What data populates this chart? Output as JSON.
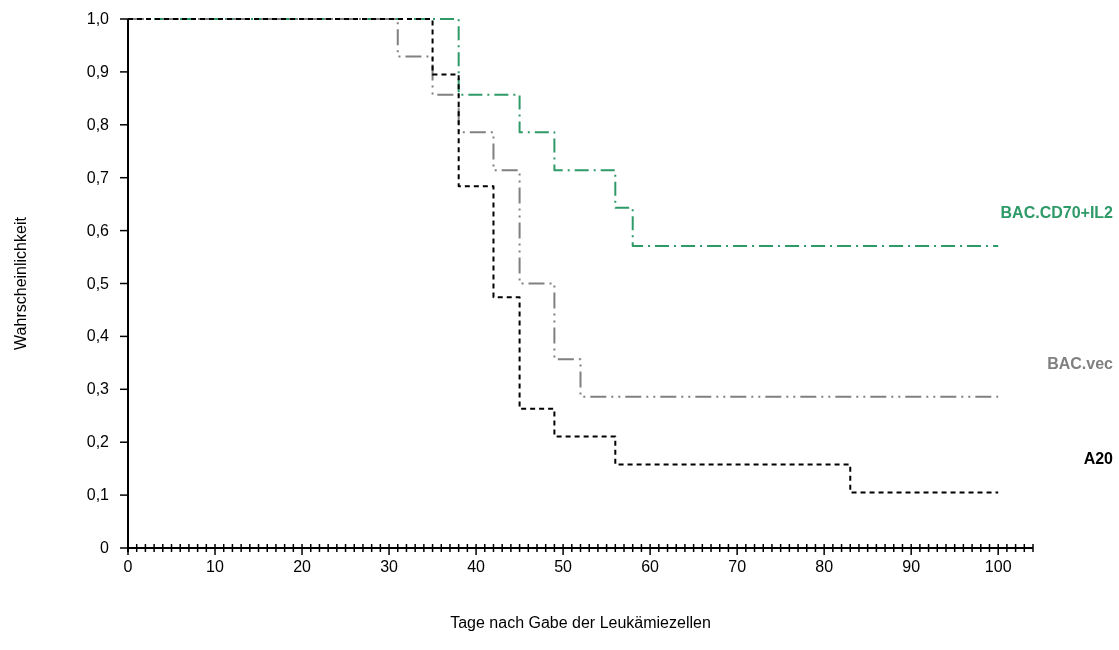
{
  "chart_data": {
    "type": "step",
    "xlabel": "Tage nach Gabe der Leukämiezellen",
    "ylabel": "Wahrscheinlichkeit",
    "xlim": [
      0,
      104
    ],
    "ylim": [
      0,
      1
    ],
    "xticks": [
      0,
      {
        "value": 1,
        "label": null
      },
      {
        "value": 2,
        "label": null
      },
      {
        "value": 3,
        "label": null
      },
      {
        "value": 4,
        "label": null
      },
      {
        "value": 5,
        "label": null
      },
      {
        "value": 6,
        "label": null
      },
      {
        "value": 7,
        "label": null
      },
      {
        "value": 8,
        "label": null
      },
      {
        "value": 9,
        "label": null
      },
      10,
      {
        "value": 11,
        "label": null
      },
      {
        "value": 12,
        "label": null
      },
      {
        "value": 13,
        "label": null
      },
      {
        "value": 14,
        "label": null
      },
      {
        "value": 15,
        "label": null
      },
      {
        "value": 16,
        "label": null
      },
      {
        "value": 17,
        "label": null
      },
      {
        "value": 18,
        "label": null
      },
      {
        "value": 19,
        "label": null
      },
      20,
      {
        "value": 21,
        "label": null
      },
      {
        "value": 22,
        "label": null
      },
      {
        "value": 23,
        "label": null
      },
      {
        "value": 24,
        "label": null
      },
      {
        "value": 25,
        "label": null
      },
      {
        "value": 26,
        "label": null
      },
      {
        "value": 27,
        "label": null
      },
      {
        "value": 28,
        "label": null
      },
      {
        "value": 29,
        "label": null
      },
      30,
      {
        "value": 31,
        "label": null
      },
      {
        "value": 32,
        "label": null
      },
      {
        "value": 33,
        "label": null
      },
      {
        "value": 34,
        "label": null
      },
      {
        "value": 35,
        "label": null
      },
      {
        "value": 36,
        "label": null
      },
      {
        "value": 37,
        "label": null
      },
      {
        "value": 38,
        "label": null
      },
      {
        "value": 39,
        "label": null
      },
      40,
      {
        "value": 41,
        "label": null
      },
      {
        "value": 42,
        "label": null
      },
      {
        "value": 43,
        "label": null
      },
      {
        "value": 44,
        "label": null
      },
      {
        "value": 45,
        "label": null
      },
      {
        "value": 46,
        "label": null
      },
      {
        "value": 47,
        "label": null
      },
      {
        "value": 48,
        "label": null
      },
      {
        "value": 49,
        "label": null
      },
      50,
      {
        "value": 51,
        "label": null
      },
      {
        "value": 52,
        "label": null
      },
      {
        "value": 53,
        "label": null
      },
      {
        "value": 54,
        "label": null
      },
      {
        "value": 55,
        "label": null
      },
      {
        "value": 56,
        "label": null
      },
      {
        "value": 57,
        "label": null
      },
      {
        "value": 58,
        "label": null
      },
      {
        "value": 59,
        "label": null
      },
      60,
      {
        "value": 61,
        "label": null
      },
      {
        "value": 62,
        "label": null
      },
      {
        "value": 63,
        "label": null
      },
      {
        "value": 64,
        "label": null
      },
      {
        "value": 65,
        "label": null
      },
      {
        "value": 66,
        "label": null
      },
      {
        "value": 67,
        "label": null
      },
      {
        "value": 68,
        "label": null
      },
      {
        "value": 69,
        "label": null
      },
      70,
      {
        "value": 71,
        "label": null
      },
      {
        "value": 72,
        "label": null
      },
      {
        "value": 73,
        "label": null
      },
      {
        "value": 74,
        "label": null
      },
      {
        "value": 75,
        "label": null
      },
      {
        "value": 76,
        "label": null
      },
      {
        "value": 77,
        "label": null
      },
      {
        "value": 78,
        "label": null
      },
      {
        "value": 79,
        "label": null
      },
      80,
      {
        "value": 81,
        "label": null
      },
      {
        "value": 82,
        "label": null
      },
      {
        "value": 83,
        "label": null
      },
      {
        "value": 84,
        "label": null
      },
      {
        "value": 85,
        "label": null
      },
      {
        "value": 86,
        "label": null
      },
      {
        "value": 87,
        "label": null
      },
      {
        "value": 88,
        "label": null
      },
      {
        "value": 89,
        "label": null
      },
      90,
      {
        "value": 91,
        "label": null
      },
      {
        "value": 92,
        "label": null
      },
      {
        "value": 93,
        "label": null
      },
      {
        "value": 94,
        "label": null
      },
      {
        "value": 95,
        "label": null
      },
      {
        "value": 96,
        "label": null
      },
      {
        "value": 97,
        "label": null
      },
      {
        "value": 98,
        "label": null
      },
      {
        "value": 99,
        "label": null
      },
      100,
      {
        "value": 101,
        "label": null
      },
      {
        "value": 102,
        "label": null
      },
      {
        "value": 103,
        "label": null
      },
      {
        "value": 104,
        "label": null
      }
    ],
    "yticks": [
      0,
      {
        "value": 0.1,
        "label": "0,1"
      },
      {
        "value": 0.2,
        "label": "0,2"
      },
      {
        "value": 0.3,
        "label": "0,3"
      },
      {
        "value": 0.4,
        "label": "0,4"
      },
      {
        "value": 0.5,
        "label": "0,5"
      },
      {
        "value": 0.6,
        "label": "0,6"
      },
      {
        "value": 0.7,
        "label": "0,7"
      },
      {
        "value": 0.8,
        "label": "0,8"
      },
      {
        "value": 0.9,
        "label": "0,9"
      },
      {
        "value": 1,
        "label": "1,0"
      }
    ],
    "grid": false,
    "line_style": "dashed",
    "series": [
      {
        "name": "BAC.CD70+IL2",
        "color": "#2e9a68",
        "x": [
          0,
          38,
          45,
          49,
          56,
          58,
          100
        ],
        "values": [
          1,
          0.857,
          0.786,
          0.714,
          0.643,
          0.571,
          0.571
        ]
      },
      {
        "name": "BAC.vec",
        "color": "#808080",
        "x": [
          0,
          31,
          35,
          38,
          42,
          45,
          49,
          52,
          100
        ],
        "values": [
          1,
          0.929,
          0.857,
          0.786,
          0.714,
          0.5,
          0.357,
          0.286,
          0.286
        ]
      },
      {
        "name": "A20",
        "color": "#000000",
        "x": [
          0,
          35,
          38,
          42,
          45,
          49,
          56,
          83,
          100
        ],
        "values": [
          1,
          0.895,
          0.684,
          0.474,
          0.263,
          0.211,
          0.158,
          0.105,
          0.105
        ]
      }
    ]
  }
}
